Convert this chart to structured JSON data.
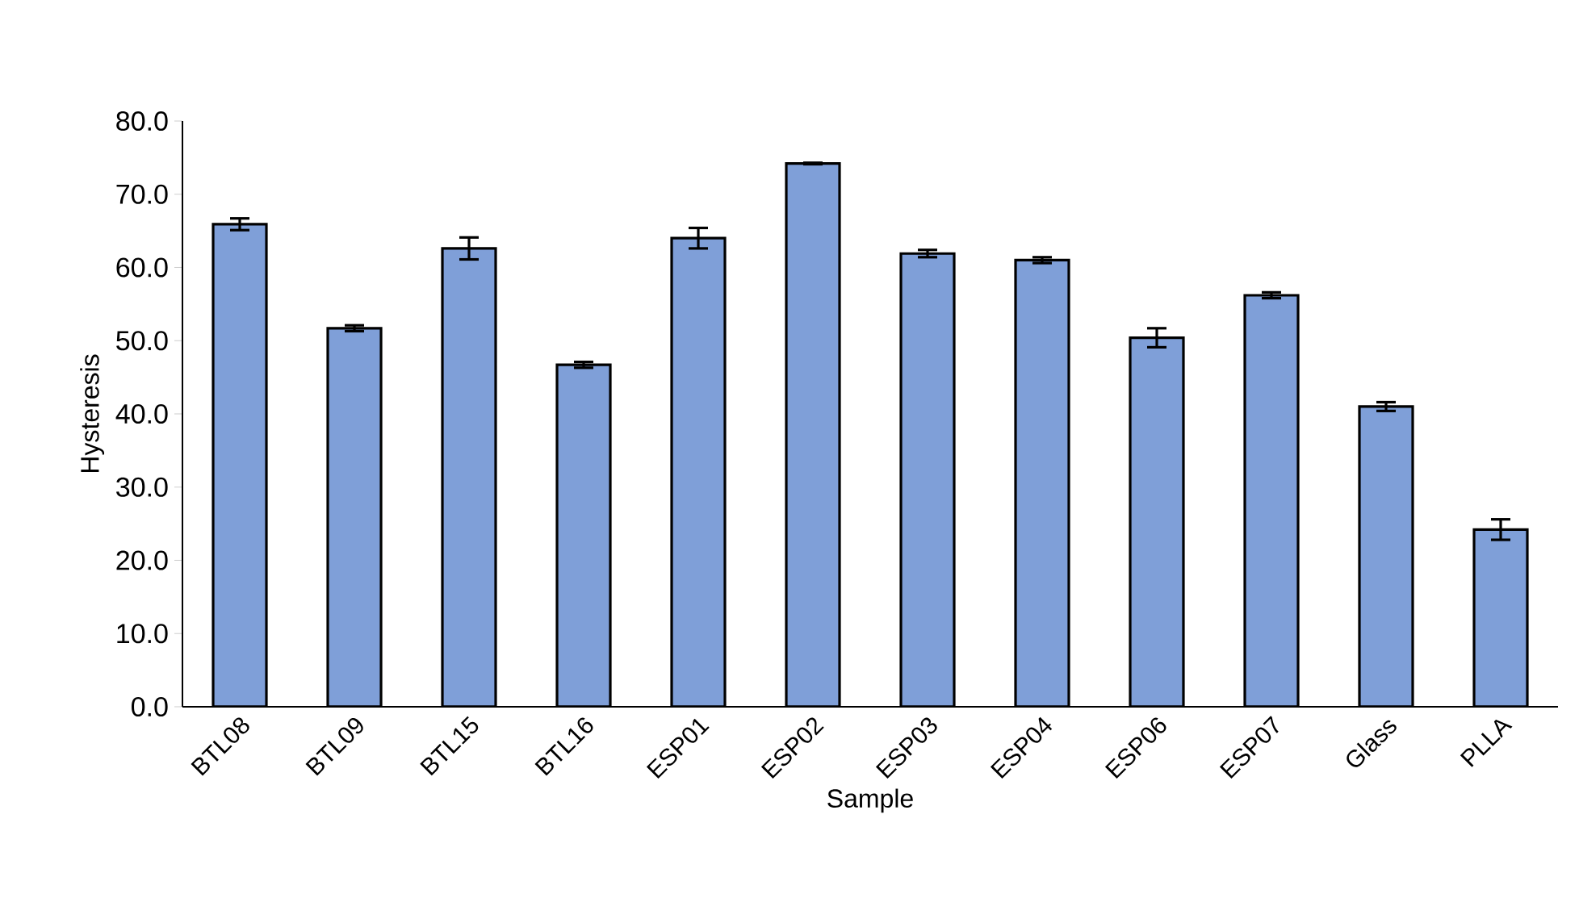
{
  "chart_data": {
    "type": "bar",
    "xlabel": "Sample",
    "ylabel": "Hysteresis",
    "categories": [
      "BTL08",
      "BTL09",
      "BTL15",
      "BTL16",
      "ESP01",
      "ESP02",
      "ESP03",
      "ESP04",
      "ESP06",
      "ESP07",
      "Glass",
      "PLLA"
    ],
    "values": [
      65.9,
      51.7,
      62.6,
      46.7,
      64.0,
      74.2,
      61.9,
      61.0,
      50.4,
      56.2,
      41.0,
      24.2
    ],
    "errors": [
      0.8,
      0.4,
      1.5,
      0.4,
      1.4,
      0.1,
      0.5,
      0.4,
      1.3,
      0.4,
      0.6,
      1.4
    ],
    "color": "#7f9fd8",
    "ylim": [
      0,
      80
    ],
    "yticks": [
      {
        "value": 0,
        "label": "0.0"
      },
      {
        "value": 10,
        "label": "10.0"
      },
      {
        "value": 20,
        "label": "20.0"
      },
      {
        "value": 30,
        "label": "30.0"
      },
      {
        "value": 40,
        "label": "40.0"
      },
      {
        "value": 50,
        "label": "50.0"
      },
      {
        "value": 60,
        "label": "60.0"
      },
      {
        "value": 70,
        "label": "70.0"
      },
      {
        "value": 80,
        "label": "80.0"
      }
    ],
    "grid": false
  }
}
